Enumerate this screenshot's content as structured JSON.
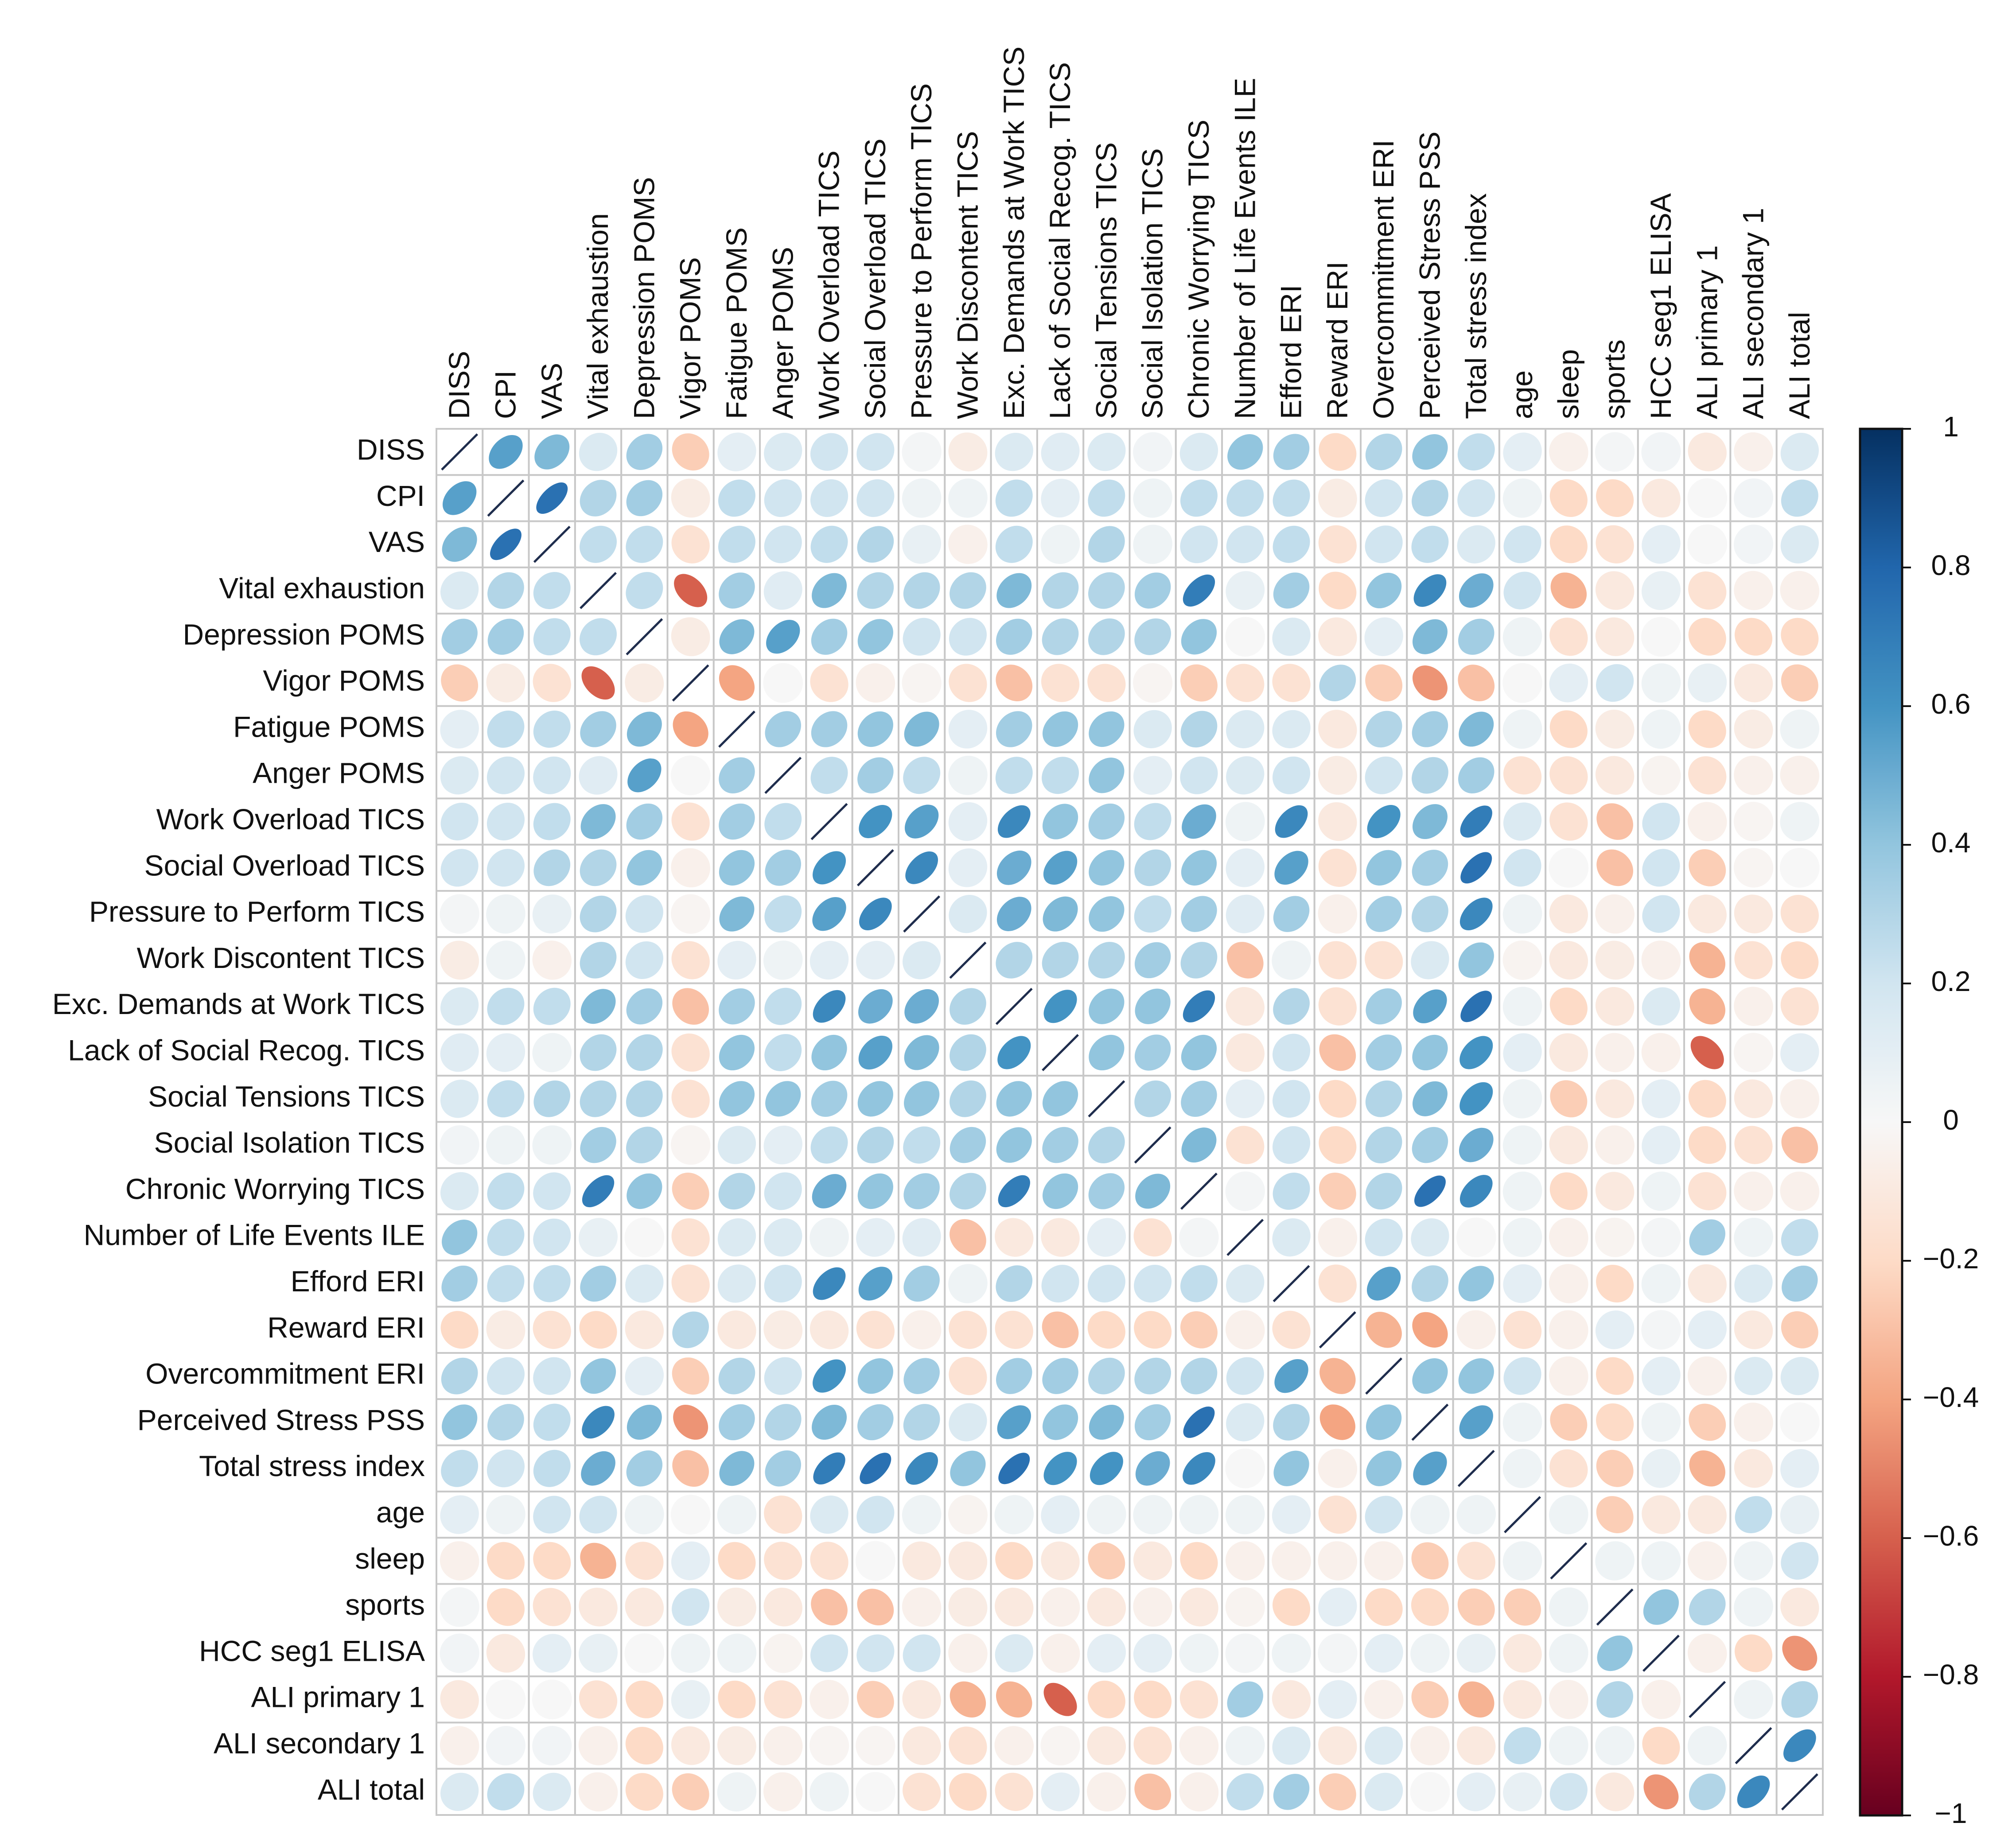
{
  "chart_data": {
    "type": "correlation-matrix",
    "variables": [
      "DISS",
      "CPI",
      "VAS",
      "Vital exhaustion",
      "Depression POMS",
      "Vigor POMS",
      "Fatigue POMS",
      "Anger POMS",
      "Work Overload TICS",
      "Social Overload TICS",
      "Pressure to Perform TICS",
      "Work Discontent TICS",
      "Exc. Demands at Work TICS",
      "Lack of Social Recog. TICS",
      "Social Tensions TICS",
      "Social Isolation TICS",
      "Chronic Worrying TICS",
      "Number of Life Events ILE",
      "Efford ERI",
      "Reward ERI",
      "Overcommitment ERI",
      "Perceived Stress PSS",
      "Total stress index",
      "age",
      "sleep",
      "sports",
      "HCC seg1 ELISA",
      "ALI primary 1",
      "ALI secondary 1",
      "ALI total"
    ],
    "colorbar": {
      "range": [
        -1,
        1
      ],
      "ticks": [
        "1",
        "0.8",
        "0.6",
        "0.4",
        "0.2",
        "0",
        "−0.2",
        "−0.4",
        "−0.6",
        "−0.8",
        "−1"
      ],
      "tick_values": [
        1,
        0.8,
        0.6,
        0.4,
        0.2,
        0,
        -0.2,
        -0.4,
        -0.6,
        -0.8,
        -1
      ],
      "low_color": "#67001f",
      "mid_color": "#f7f7f7",
      "high_color": "#053061"
    },
    "matrix": [
      [
        1,
        0.55,
        0.45,
        0.15,
        0.35,
        -0.25,
        0.1,
        0.15,
        0.2,
        0.2,
        0.02,
        -0.08,
        0.15,
        0.12,
        0.15,
        0.03,
        0.15,
        0.4,
        0.35,
        -0.2,
        0.3,
        0.4,
        0.25,
        0.1,
        -0.05,
        0.02,
        0.03,
        -0.1,
        -0.05,
        0.15
      ],
      [
        0.55,
        1,
        0.75,
        0.3,
        0.35,
        -0.08,
        0.25,
        0.2,
        0.2,
        0.2,
        0.05,
        0.05,
        0.25,
        0.1,
        0.25,
        0.05,
        0.25,
        0.25,
        0.25,
        -0.08,
        0.2,
        0.3,
        0.2,
        0.05,
        -0.2,
        -0.2,
        -0.1,
        0.0,
        0.03,
        0.25
      ],
      [
        0.45,
        0.75,
        1,
        0.25,
        0.25,
        -0.15,
        0.25,
        0.2,
        0.25,
        0.3,
        0.08,
        -0.05,
        0.25,
        0.05,
        0.3,
        0.05,
        0.2,
        0.2,
        0.25,
        -0.15,
        0.2,
        0.25,
        0.15,
        0.2,
        -0.2,
        -0.15,
        0.1,
        0.0,
        0.03,
        0.15
      ],
      [
        0.15,
        0.3,
        0.25,
        1,
        0.25,
        -0.6,
        0.35,
        0.12,
        0.45,
        0.3,
        0.3,
        0.3,
        0.45,
        0.3,
        0.3,
        0.35,
        0.7,
        0.08,
        0.35,
        -0.2,
        0.4,
        0.65,
        0.5,
        0.2,
        -0.35,
        -0.1,
        0.08,
        -0.15,
        -0.05,
        -0.05
      ],
      [
        0.35,
        0.35,
        0.25,
        0.25,
        1,
        -0.08,
        0.45,
        0.55,
        0.35,
        0.4,
        0.2,
        0.2,
        0.35,
        0.3,
        0.3,
        0.3,
        0.4,
        0.0,
        0.15,
        -0.1,
        0.1,
        0.45,
        0.35,
        0.05,
        -0.15,
        -0.1,
        0.0,
        -0.2,
        -0.2,
        -0.2
      ],
      [
        -0.25,
        -0.08,
        -0.15,
        -0.6,
        -0.08,
        1,
        -0.4,
        0.0,
        -0.15,
        -0.05,
        -0.02,
        -0.15,
        -0.3,
        -0.15,
        -0.15,
        -0.02,
        -0.25,
        -0.15,
        -0.15,
        0.3,
        -0.25,
        -0.45,
        -0.3,
        0.0,
        0.1,
        0.2,
        0.05,
        0.08,
        -0.1,
        -0.25
      ],
      [
        0.1,
        0.25,
        0.25,
        0.35,
        0.45,
        -0.4,
        1,
        0.35,
        0.35,
        0.4,
        0.45,
        0.1,
        0.35,
        0.4,
        0.4,
        0.15,
        0.3,
        0.15,
        0.15,
        -0.1,
        0.3,
        0.35,
        0.45,
        0.05,
        -0.2,
        -0.08,
        0.05,
        -0.2,
        -0.08,
        0.05
      ],
      [
        0.15,
        0.2,
        0.2,
        0.12,
        0.55,
        0.0,
        0.35,
        1,
        0.25,
        0.35,
        0.25,
        0.05,
        0.25,
        0.25,
        0.4,
        0.1,
        0.2,
        0.15,
        0.2,
        -0.08,
        0.2,
        0.3,
        0.35,
        -0.15,
        -0.15,
        -0.1,
        -0.03,
        -0.15,
        -0.05,
        -0.05
      ],
      [
        0.2,
        0.2,
        0.25,
        0.45,
        0.35,
        -0.15,
        0.35,
        0.25,
        1,
        0.6,
        0.55,
        0.1,
        0.65,
        0.4,
        0.35,
        0.25,
        0.5,
        0.05,
        0.65,
        -0.1,
        0.6,
        0.45,
        0.7,
        0.15,
        -0.15,
        -0.3,
        0.2,
        -0.05,
        -0.02,
        0.05
      ],
      [
        0.2,
        0.2,
        0.3,
        0.3,
        0.4,
        -0.05,
        0.4,
        0.35,
        0.6,
        1,
        0.65,
        0.1,
        0.5,
        0.55,
        0.4,
        0.3,
        0.4,
        0.1,
        0.55,
        -0.15,
        0.4,
        0.35,
        0.75,
        0.2,
        0.0,
        -0.3,
        0.2,
        -0.25,
        -0.02,
        0.0
      ],
      [
        0.02,
        0.05,
        0.08,
        0.3,
        0.2,
        -0.02,
        0.45,
        0.25,
        0.55,
        0.65,
        1,
        0.15,
        0.5,
        0.45,
        0.4,
        0.25,
        0.35,
        0.12,
        0.35,
        -0.05,
        0.35,
        0.3,
        0.65,
        0.05,
        -0.1,
        -0.05,
        0.2,
        -0.1,
        -0.1,
        -0.15
      ],
      [
        -0.08,
        0.05,
        -0.05,
        0.3,
        0.2,
        -0.15,
        0.1,
        0.05,
        0.1,
        0.1,
        0.15,
        1,
        0.3,
        0.3,
        0.3,
        0.35,
        0.3,
        -0.3,
        0.05,
        -0.15,
        -0.15,
        0.15,
        0.4,
        -0.03,
        -0.1,
        -0.08,
        -0.05,
        -0.35,
        -0.15,
        -0.2
      ],
      [
        0.15,
        0.25,
        0.25,
        0.45,
        0.35,
        -0.3,
        0.35,
        0.25,
        0.65,
        0.5,
        0.5,
        0.3,
        1,
        0.6,
        0.4,
        0.4,
        0.7,
        -0.1,
        0.3,
        -0.15,
        0.35,
        0.55,
        0.75,
        0.05,
        -0.2,
        -0.1,
        0.15,
        -0.35,
        -0.05,
        -0.15
      ],
      [
        0.12,
        0.1,
        0.05,
        0.3,
        0.3,
        -0.15,
        0.4,
        0.25,
        0.4,
        0.55,
        0.45,
        0.3,
        0.6,
        1,
        0.4,
        0.35,
        0.4,
        -0.1,
        0.2,
        -0.3,
        0.35,
        0.4,
        0.6,
        0.1,
        -0.1,
        -0.05,
        -0.05,
        -0.6,
        -0.02,
        0.1
      ],
      [
        0.15,
        0.25,
        0.3,
        0.3,
        0.3,
        -0.15,
        0.4,
        0.4,
        0.35,
        0.4,
        0.4,
        0.3,
        0.4,
        0.4,
        1,
        0.3,
        0.35,
        0.1,
        0.2,
        -0.2,
        0.3,
        0.45,
        0.6,
        0.05,
        -0.25,
        -0.1,
        0.1,
        -0.2,
        -0.1,
        -0.05
      ],
      [
        0.03,
        0.05,
        0.05,
        0.35,
        0.3,
        -0.02,
        0.15,
        0.1,
        0.25,
        0.3,
        0.25,
        0.35,
        0.4,
        0.35,
        0.3,
        1,
        0.45,
        -0.15,
        0.2,
        -0.2,
        0.3,
        0.35,
        0.5,
        0.05,
        -0.1,
        -0.05,
        0.1,
        -0.2,
        -0.15,
        -0.3
      ],
      [
        0.15,
        0.25,
        0.2,
        0.7,
        0.4,
        -0.25,
        0.3,
        0.2,
        0.5,
        0.4,
        0.35,
        0.3,
        0.7,
        0.4,
        0.35,
        0.45,
        1,
        0.02,
        0.25,
        -0.25,
        0.3,
        0.75,
        0.65,
        0.05,
        -0.2,
        -0.1,
        0.05,
        -0.15,
        -0.05,
        -0.05
      ],
      [
        0.4,
        0.25,
        0.2,
        0.08,
        0.0,
        -0.15,
        0.15,
        0.15,
        0.05,
        0.1,
        0.12,
        -0.3,
        -0.1,
        -0.1,
        0.1,
        -0.15,
        0.02,
        1,
        0.15,
        -0.05,
        0.2,
        0.15,
        0.0,
        0.05,
        -0.05,
        -0.03,
        0.02,
        0.35,
        0.05,
        0.25
      ],
      [
        0.35,
        0.25,
        0.25,
        0.35,
        0.15,
        -0.15,
        0.15,
        0.2,
        0.65,
        0.55,
        0.35,
        0.05,
        0.3,
        0.2,
        0.2,
        0.2,
        0.25,
        0.15,
        1,
        -0.15,
        0.55,
        0.3,
        0.4,
        0.1,
        -0.05,
        -0.2,
        0.05,
        -0.1,
        0.15,
        0.35
      ],
      [
        -0.2,
        -0.08,
        -0.15,
        -0.2,
        -0.1,
        0.3,
        -0.1,
        -0.08,
        -0.1,
        -0.15,
        -0.05,
        -0.15,
        -0.15,
        -0.3,
        -0.2,
        -0.2,
        -0.25,
        -0.05,
        -0.15,
        1,
        -0.35,
        -0.4,
        -0.05,
        -0.15,
        -0.05,
        0.1,
        0.02,
        0.1,
        -0.1,
        -0.25
      ],
      [
        0.3,
        0.2,
        0.2,
        0.4,
        0.1,
        -0.25,
        0.3,
        0.2,
        0.6,
        0.4,
        0.35,
        -0.15,
        0.35,
        0.35,
        0.3,
        0.3,
        0.3,
        0.2,
        0.55,
        -0.35,
        1,
        0.4,
        0.4,
        0.2,
        -0.05,
        -0.2,
        0.1,
        -0.05,
        0.15,
        0.15
      ],
      [
        0.4,
        0.3,
        0.25,
        0.65,
        0.45,
        -0.45,
        0.35,
        0.3,
        0.45,
        0.35,
        0.3,
        0.15,
        0.55,
        0.4,
        0.45,
        0.35,
        0.75,
        0.15,
        0.3,
        -0.4,
        0.4,
        1,
        0.55,
        0.05,
        -0.25,
        -0.2,
        0.05,
        -0.25,
        -0.05,
        0.0
      ],
      [
        0.25,
        0.2,
        0.25,
        0.5,
        0.35,
        -0.3,
        0.45,
        0.35,
        0.7,
        0.75,
        0.65,
        0.4,
        0.75,
        0.6,
        0.6,
        0.5,
        0.65,
        0.0,
        0.4,
        -0.05,
        0.4,
        0.55,
        1,
        0.05,
        -0.15,
        -0.25,
        0.08,
        -0.35,
        -0.1,
        0.1
      ],
      [
        0.1,
        0.05,
        0.2,
        0.2,
        0.05,
        0.0,
        0.05,
        -0.15,
        0.15,
        0.2,
        0.05,
        -0.03,
        0.05,
        0.1,
        0.05,
        0.05,
        0.05,
        0.05,
        0.1,
        -0.15,
        0.2,
        0.05,
        0.05,
        1,
        0.05,
        -0.25,
        -0.1,
        -0.1,
        0.25,
        0.08
      ],
      [
        -0.05,
        -0.2,
        -0.2,
        -0.35,
        -0.15,
        0.1,
        -0.2,
        -0.15,
        -0.15,
        0.0,
        -0.1,
        -0.1,
        -0.2,
        -0.1,
        -0.25,
        -0.1,
        -0.2,
        -0.05,
        -0.05,
        -0.05,
        -0.05,
        -0.25,
        -0.15,
        0.05,
        1,
        0.05,
        0.05,
        -0.05,
        0.05,
        0.2
      ],
      [
        0.02,
        -0.2,
        -0.15,
        -0.1,
        -0.1,
        0.2,
        -0.08,
        -0.1,
        -0.3,
        -0.3,
        -0.05,
        -0.08,
        -0.1,
        -0.05,
        -0.1,
        -0.05,
        -0.1,
        -0.03,
        -0.2,
        0.1,
        -0.2,
        -0.2,
        -0.25,
        -0.25,
        0.05,
        1,
        0.4,
        0.3,
        0.05,
        -0.1
      ],
      [
        0.03,
        -0.1,
        0.1,
        0.08,
        0.0,
        0.05,
        0.05,
        -0.03,
        0.2,
        0.2,
        0.2,
        -0.05,
        0.15,
        -0.05,
        0.1,
        0.1,
        0.05,
        0.02,
        0.05,
        0.02,
        0.1,
        0.05,
        0.08,
        -0.1,
        0.05,
        0.4,
        1,
        -0.05,
        -0.2,
        -0.45
      ],
      [
        -0.1,
        0.0,
        0.0,
        -0.15,
        -0.2,
        0.08,
        -0.2,
        -0.15,
        -0.05,
        -0.25,
        -0.1,
        -0.35,
        -0.35,
        -0.6,
        -0.2,
        -0.2,
        -0.15,
        0.35,
        -0.1,
        0.1,
        -0.05,
        -0.25,
        -0.35,
        -0.1,
        -0.05,
        0.3,
        -0.05,
        1,
        0.05,
        0.3
      ],
      [
        -0.05,
        0.03,
        0.03,
        -0.05,
        -0.2,
        -0.1,
        -0.08,
        -0.05,
        -0.02,
        -0.02,
        -0.1,
        -0.15,
        -0.05,
        -0.02,
        -0.1,
        -0.15,
        -0.05,
        0.05,
        0.15,
        -0.1,
        0.15,
        -0.05,
        -0.1,
        0.25,
        0.05,
        0.05,
        -0.2,
        0.05,
        1,
        0.65
      ],
      [
        0.15,
        0.25,
        0.15,
        -0.05,
        -0.2,
        -0.25,
        0.05,
        -0.05,
        0.05,
        0.0,
        -0.15,
        -0.2,
        -0.15,
        0.1,
        -0.05,
        -0.3,
        -0.05,
        0.25,
        0.35,
        -0.25,
        0.15,
        0.0,
        0.1,
        0.08,
        0.2,
        -0.1,
        -0.45,
        0.3,
        0.65,
        1
      ]
    ]
  }
}
